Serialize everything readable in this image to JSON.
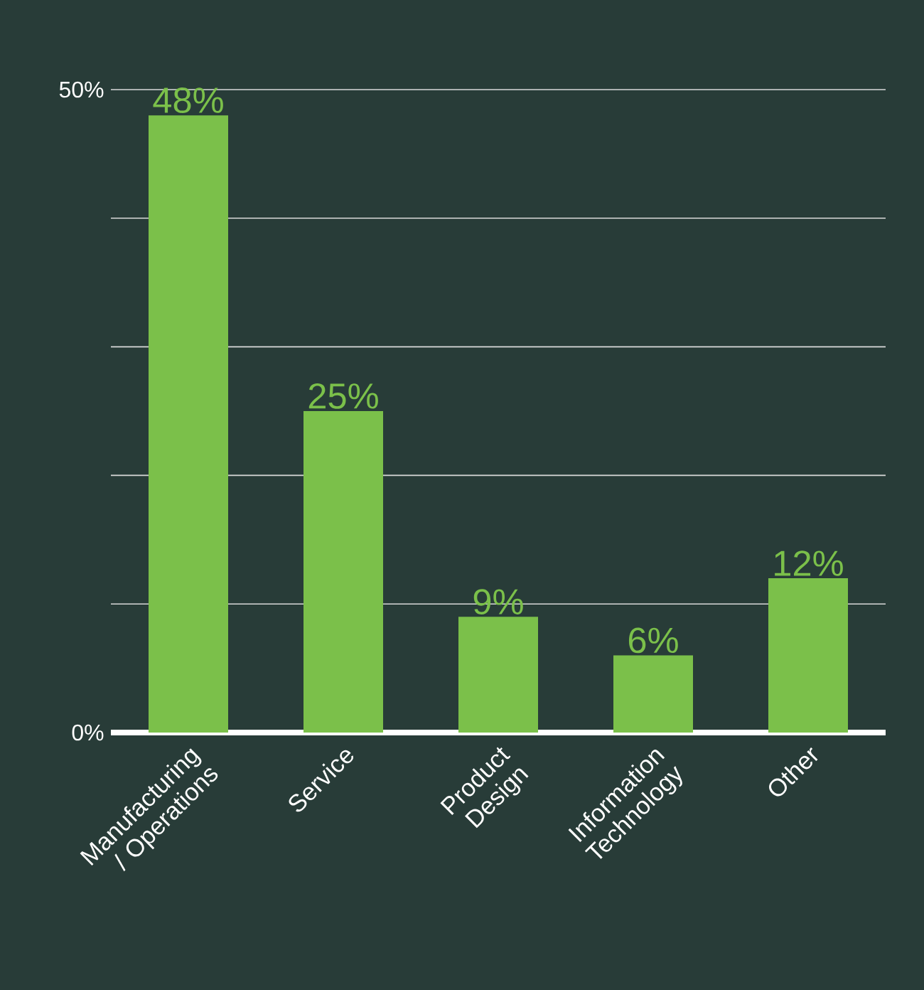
{
  "chart_data": {
    "type": "bar",
    "categories": [
      "Manufacturing / Operations",
      "Service",
      "Product Design",
      "Information Technology",
      "Other"
    ],
    "values": [
      48,
      25,
      9,
      6,
      12
    ],
    "value_labels": [
      "48%",
      "25%",
      "9%",
      "6%",
      "12%"
    ],
    "color": "#7bc04a",
    "ylim": [
      0,
      50
    ],
    "yticks": [
      {
        "value": 0,
        "label": "0%"
      },
      {
        "value": 10,
        "label": null
      },
      {
        "value": 20,
        "label": null
      },
      {
        "value": 30,
        "label": null
      },
      {
        "value": 40,
        "label": null
      },
      {
        "value": 50,
        "label": "50%"
      }
    ],
    "grid": "y"
  }
}
